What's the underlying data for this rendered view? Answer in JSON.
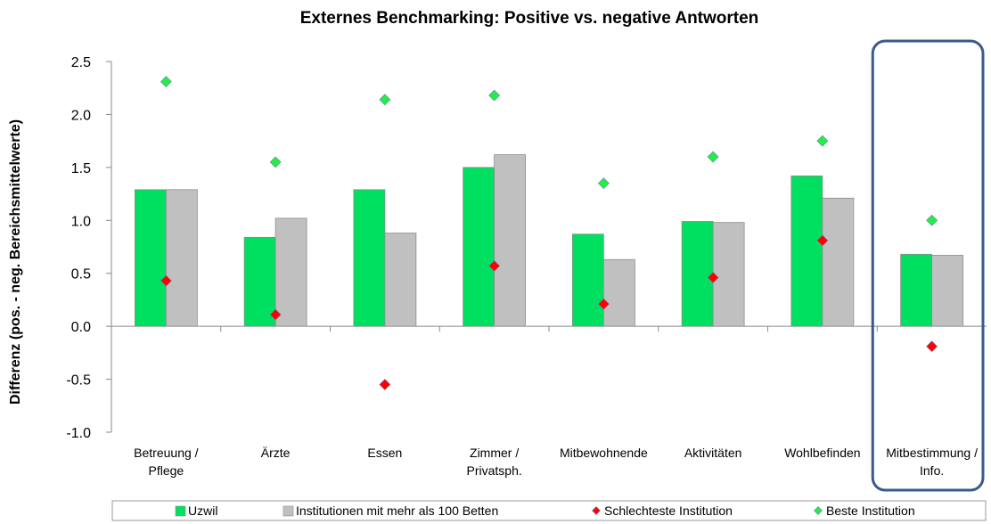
{
  "chart_data": {
    "type": "bar",
    "title": "Externes Benchmarking: Positive vs. negative Antworten",
    "ylabel": "Differenz (pos. - neg. Bereichsmittelwerte)",
    "xlabel": "",
    "ylim": [
      -1.0,
      2.5
    ],
    "yticks": [
      "2.5",
      "2.0",
      "1.5",
      "1.0",
      "0.5",
      "0.0",
      "-0.5",
      "-1.0"
    ],
    "ytick_values": [
      2.5,
      2.0,
      1.5,
      1.0,
      0.5,
      0.0,
      -0.5,
      -1.0
    ],
    "categories": [
      [
        "Betreuung /",
        "Pflege"
      ],
      [
        "Ärzte"
      ],
      [
        "Essen"
      ],
      [
        "Zimmer /",
        "Privatsph."
      ],
      [
        "Mitbewohnende"
      ],
      [
        "Aktivitäten"
      ],
      [
        "Wohlbefinden"
      ],
      [
        "Mitbestimmung /",
        "Info."
      ]
    ],
    "series": [
      {
        "name": "Uzwil",
        "kind": "bar",
        "color": "#00e060",
        "values": [
          1.29,
          0.84,
          1.29,
          1.5,
          0.87,
          0.99,
          1.42,
          0.68
        ]
      },
      {
        "name": "Institutionen mit mehr als 100 Betten",
        "kind": "bar",
        "color": "#c0c0c0",
        "values": [
          1.29,
          1.02,
          0.88,
          1.62,
          0.63,
          0.98,
          1.21,
          0.67
        ]
      },
      {
        "name": "Schlechteste Institution",
        "kind": "marker",
        "color": "#ff0000",
        "values": [
          0.43,
          0.11,
          -0.55,
          0.57,
          0.21,
          0.46,
          0.81,
          -0.19
        ]
      },
      {
        "name": "Beste Institution",
        "kind": "marker",
        "color": "#22ee44",
        "values": [
          2.31,
          1.55,
          2.14,
          2.18,
          1.35,
          1.6,
          1.75,
          1.0
        ]
      }
    ],
    "highlight_category_index": 7,
    "highlight_color": "#3a5a8a",
    "grid": false,
    "legend_position": "bottom"
  }
}
